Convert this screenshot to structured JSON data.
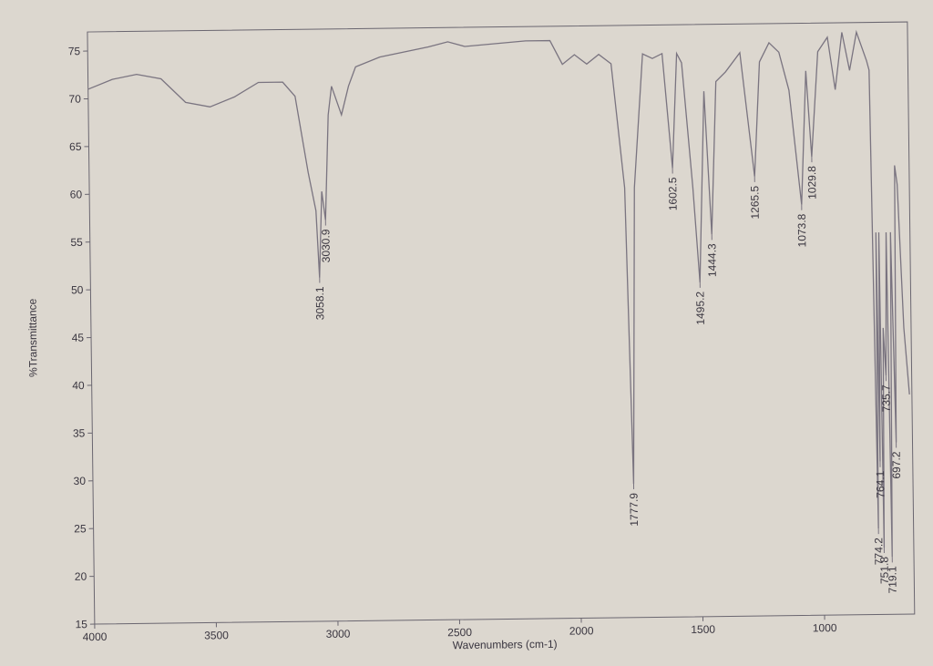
{
  "chart_data": {
    "type": "line",
    "x_label": "Wavenumbers (cm-1)",
    "y_label": "%Transmittance",
    "x": [
      4000,
      3900,
      3800,
      3700,
      3600,
      3500,
      3400,
      3300,
      3200,
      3150,
      3100,
      3070,
      3058.1,
      3045,
      3030.9,
      3015,
      3000,
      2960,
      2930,
      2900,
      2800,
      2600,
      2520,
      2450,
      2200,
      2100,
      2050,
      2000,
      1950,
      1900,
      1850,
      1800,
      1777.9,
      1760,
      1720,
      1680,
      1640,
      1602.5,
      1580,
      1560,
      1520,
      1495.2,
      1470,
      1444.3,
      1420,
      1380,
      1320,
      1265.5,
      1240,
      1200,
      1160,
      1120,
      1073.8,
      1050,
      1029.8,
      1000,
      960,
      930,
      900,
      870,
      840,
      800,
      790,
      774.2,
      770,
      764.1,
      758,
      751.8,
      745,
      735.7,
      728,
      719.1,
      710,
      697.2,
      690,
      680,
      660,
      640
    ],
    "values": [
      71,
      72,
      72.5,
      72,
      69.5,
      69,
      70,
      71.5,
      71.5,
      70,
      62,
      58,
      51,
      60,
      57,
      68,
      71,
      68,
      71,
      73,
      74,
      75,
      75.5,
      75,
      75.5,
      75.5,
      73,
      74,
      73,
      74,
      73,
      60,
      29,
      60,
      74,
      73.5,
      74,
      62,
      74,
      73,
      60,
      50,
      70,
      55,
      71,
      72,
      74,
      61,
      73,
      75,
      74,
      70,
      58,
      72,
      63,
      74,
      75.5,
      70,
      76,
      72,
      76,
      73,
      72,
      24,
      55,
      31,
      55,
      22,
      45,
      40,
      55,
      21,
      55,
      33,
      62,
      60,
      45,
      38
    ],
    "color": "#7a7480",
    "xlim": [
      4000,
      630
    ],
    "ylim": [
      15,
      77
    ],
    "xticks": [
      4000,
      3500,
      3000,
      2500,
      2000,
      1500,
      1000
    ],
    "yticks": [
      15,
      20,
      25,
      30,
      35,
      40,
      45,
      50,
      55,
      60,
      65,
      70,
      75
    ],
    "peaks": [
      {
        "x": 3058.1,
        "y": 51
      },
      {
        "x": 3030.9,
        "y": 57
      },
      {
        "x": 1777.9,
        "y": 29
      },
      {
        "x": 1602.5,
        "y": 62
      },
      {
        "x": 1495.2,
        "y": 50
      },
      {
        "x": 1444.3,
        "y": 55
      },
      {
        "x": 1265.5,
        "y": 61
      },
      {
        "x": 1073.8,
        "y": 58
      },
      {
        "x": 1029.8,
        "y": 63
      },
      {
        "x": 774.2,
        "y": 24
      },
      {
        "x": 764.1,
        "y": 31
      },
      {
        "x": 751.8,
        "y": 22
      },
      {
        "x": 735.7,
        "y": 40
      },
      {
        "x": 719.1,
        "y": 21
      },
      {
        "x": 697.2,
        "y": 33
      }
    ]
  }
}
